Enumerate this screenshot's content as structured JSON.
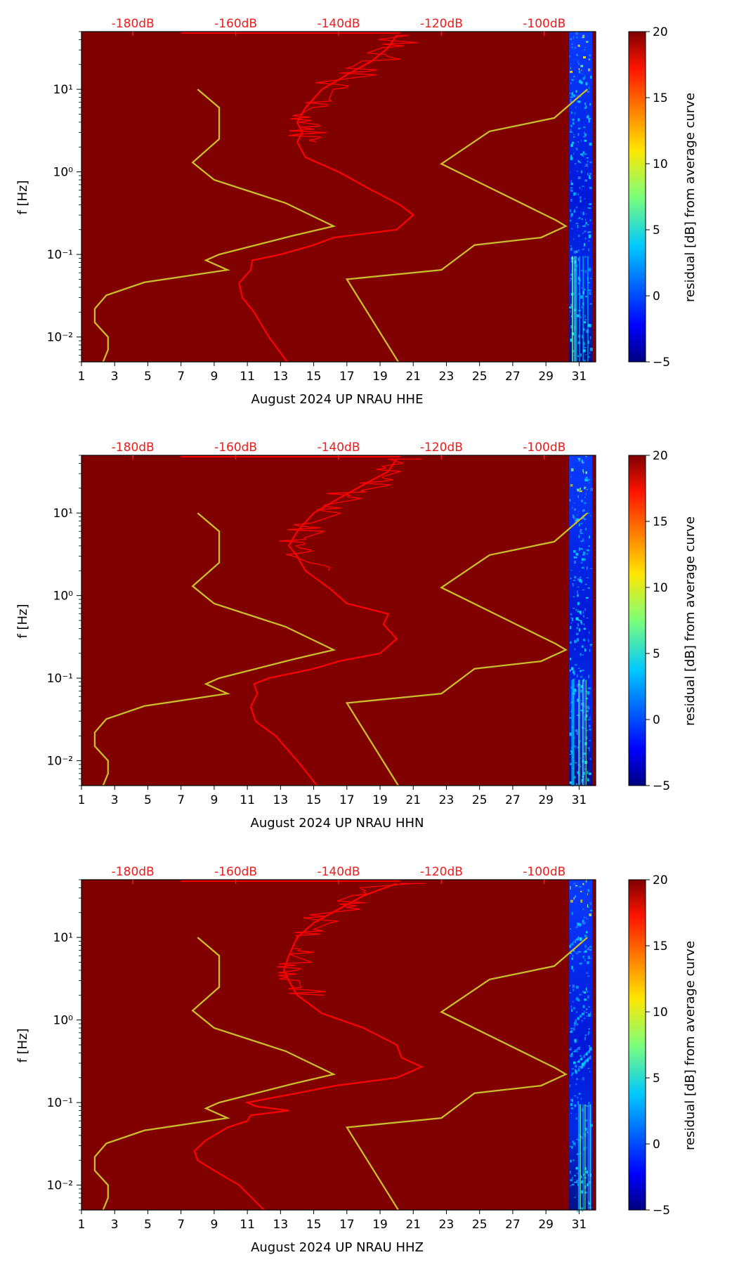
{
  "chart_data": [
    {
      "type": "heatmap",
      "xlabel": "August 2024 UP NRAU  HHE",
      "ylabel": "f [Hz]",
      "x_ticks": [
        "1",
        "3",
        "5",
        "7",
        "9",
        "11",
        "13",
        "15",
        "17",
        "19",
        "21",
        "23",
        "25",
        "27",
        "29",
        "31"
      ],
      "xlim": [
        1,
        32
      ],
      "y_ticks": [
        "10⁻²",
        "10⁻¹",
        "10⁰",
        "10¹"
      ],
      "ylim": [
        0.005,
        50
      ],
      "top_ticks": [
        "-180dB",
        "-160dB",
        "-140dB",
        "-120dB",
        "-100dB"
      ],
      "top_range_db": [
        -190,
        -90
      ],
      "colorbar": {
        "label": "residual [dB] from average curve",
        "ticks": [
          "20",
          "15",
          "10",
          "5",
          "0",
          "−5"
        ],
        "range": [
          -5,
          20
        ]
      },
      "noise_models": {
        "low": [
          [
            8.0,
            10
          ],
          [
            9.3,
            6
          ],
          [
            9.3,
            2.5
          ],
          [
            7.7,
            1.3
          ],
          [
            9.0,
            0.8
          ],
          [
            13.3,
            0.42
          ],
          [
            16.2,
            0.22
          ],
          [
            13.8,
            0.17
          ],
          [
            9.3,
            0.1
          ],
          [
            8.5,
            0.085
          ],
          [
            9.8,
            0.065
          ],
          [
            4.8,
            0.046
          ],
          [
            2.5,
            0.032
          ],
          [
            1.8,
            0.022
          ],
          [
            1.8,
            0.015
          ],
          [
            2.6,
            0.01
          ],
          [
            2.6,
            0.007
          ],
          [
            2.3,
            0.005
          ]
        ],
        "high": [
          [
            31.5,
            10
          ],
          [
            29.5,
            4.5
          ],
          [
            25.6,
            3.1
          ],
          [
            22.7,
            1.25
          ],
          [
            29.6,
            0.26
          ],
          [
            30.2,
            0.22
          ],
          [
            28.7,
            0.16
          ],
          [
            24.7,
            0.13
          ],
          [
            22.7,
            0.065
          ],
          [
            17.0,
            0.05
          ],
          [
            20.1,
            0.005
          ]
        ]
      },
      "mean_psd": [
        [
          13.4,
          0.005
        ],
        [
          12.3,
          0.01
        ],
        [
          11.4,
          0.02
        ],
        [
          10.7,
          0.03
        ],
        [
          10.5,
          0.045
        ],
        [
          11.2,
          0.065
        ],
        [
          11.3,
          0.085
        ],
        [
          13.0,
          0.1
        ],
        [
          15.0,
          0.13
        ],
        [
          16.2,
          0.16
        ],
        [
          20.0,
          0.2
        ],
        [
          21.0,
          0.3
        ],
        [
          20.2,
          0.4
        ],
        [
          18.5,
          0.6
        ],
        [
          16.5,
          1.0
        ],
        [
          14.5,
          1.5
        ],
        [
          14.0,
          2.3
        ],
        [
          14.3,
          3.0
        ],
        [
          14.0,
          4.0
        ],
        [
          14.5,
          6.0
        ],
        [
          15.5,
          10
        ],
        [
          17.0,
          15
        ],
        [
          18.5,
          22
        ],
        [
          19.5,
          32
        ],
        [
          20.0,
          45
        ]
      ],
      "recent_days": [
        30.4,
        31.8
      ]
    },
    {
      "type": "heatmap",
      "xlabel": "August 2024 UP NRAU  HHN",
      "ylabel": "f [Hz]",
      "x_ticks": [
        "1",
        "3",
        "5",
        "7",
        "9",
        "11",
        "13",
        "15",
        "17",
        "19",
        "21",
        "23",
        "25",
        "27",
        "29",
        "31"
      ],
      "xlim": [
        1,
        32
      ],
      "y_ticks": [
        "10⁻²",
        "10⁻¹",
        "10⁰",
        "10¹"
      ],
      "ylim": [
        0.005,
        50
      ],
      "top_ticks": [
        "-180dB",
        "-160dB",
        "-140dB",
        "-120dB",
        "-100dB"
      ],
      "top_range_db": [
        -190,
        -90
      ],
      "colorbar": {
        "label": "residual [dB] from average curve",
        "ticks": [
          "20",
          "15",
          "10",
          "5",
          "0",
          "−5"
        ],
        "range": [
          -5,
          20
        ]
      },
      "noise_models": {
        "low": [
          [
            8.0,
            10
          ],
          [
            9.3,
            6
          ],
          [
            9.3,
            2.5
          ],
          [
            7.7,
            1.3
          ],
          [
            9.0,
            0.8
          ],
          [
            13.3,
            0.42
          ],
          [
            16.2,
            0.22
          ],
          [
            13.8,
            0.17
          ],
          [
            9.3,
            0.1
          ],
          [
            8.5,
            0.085
          ],
          [
            9.8,
            0.065
          ],
          [
            4.8,
            0.046
          ],
          [
            2.5,
            0.032
          ],
          [
            1.8,
            0.022
          ],
          [
            1.8,
            0.015
          ],
          [
            2.6,
            0.01
          ],
          [
            2.6,
            0.007
          ],
          [
            2.3,
            0.005
          ]
        ],
        "high": [
          [
            31.5,
            10
          ],
          [
            29.5,
            4.5
          ],
          [
            25.6,
            3.1
          ],
          [
            22.7,
            1.25
          ],
          [
            29.6,
            0.26
          ],
          [
            30.2,
            0.22
          ],
          [
            28.7,
            0.16
          ],
          [
            24.7,
            0.13
          ],
          [
            22.7,
            0.065
          ],
          [
            17.0,
            0.05
          ],
          [
            20.1,
            0.005
          ]
        ]
      },
      "mean_psd": [
        [
          15.2,
          0.005
        ],
        [
          14.0,
          0.01
        ],
        [
          12.7,
          0.02
        ],
        [
          11.5,
          0.03
        ],
        [
          11.2,
          0.045
        ],
        [
          11.6,
          0.065
        ],
        [
          11.4,
          0.085
        ],
        [
          12.3,
          0.1
        ],
        [
          15.0,
          0.13
        ],
        [
          16.5,
          0.16
        ],
        [
          19.0,
          0.2
        ],
        [
          20.0,
          0.3
        ],
        [
          19.2,
          0.45
        ],
        [
          19.5,
          0.6
        ],
        [
          17.0,
          0.8
        ],
        [
          16.0,
          1.2
        ],
        [
          14.5,
          2.0
        ],
        [
          14.0,
          3.0
        ],
        [
          13.5,
          4.0
        ],
        [
          14.0,
          6.0
        ],
        [
          15.0,
          10
        ],
        [
          16.5,
          15
        ],
        [
          18.0,
          22
        ],
        [
          19.5,
          32
        ],
        [
          20.0,
          45
        ]
      ],
      "recent_days": [
        30.4,
        31.8
      ]
    },
    {
      "type": "heatmap",
      "xlabel": "August 2024 UP NRAU  HHZ",
      "ylabel": "f [Hz]",
      "x_ticks": [
        "1",
        "3",
        "5",
        "7",
        "9",
        "11",
        "13",
        "15",
        "17",
        "19",
        "21",
        "23",
        "25",
        "27",
        "29",
        "31"
      ],
      "xlim": [
        1,
        32
      ],
      "y_ticks": [
        "10⁻²",
        "10⁻¹",
        "10⁰",
        "10¹"
      ],
      "ylim": [
        0.005,
        50
      ],
      "top_ticks": [
        "-180dB",
        "-160dB",
        "-140dB",
        "-120dB",
        "-100dB"
      ],
      "top_range_db": [
        -190,
        -90
      ],
      "colorbar": {
        "label": "residual [dB] from average curve",
        "ticks": [
          "20",
          "15",
          "10",
          "5",
          "0",
          "−5"
        ],
        "range": [
          -5,
          20
        ]
      },
      "noise_models": {
        "low": [
          [
            8.0,
            10
          ],
          [
            9.3,
            6
          ],
          [
            9.3,
            2.5
          ],
          [
            7.7,
            1.3
          ],
          [
            9.0,
            0.8
          ],
          [
            13.3,
            0.42
          ],
          [
            16.2,
            0.22
          ],
          [
            13.8,
            0.17
          ],
          [
            9.3,
            0.1
          ],
          [
            8.5,
            0.085
          ],
          [
            9.8,
            0.065
          ],
          [
            4.8,
            0.046
          ],
          [
            2.5,
            0.032
          ],
          [
            1.8,
            0.022
          ],
          [
            1.8,
            0.015
          ],
          [
            2.6,
            0.01
          ],
          [
            2.6,
            0.007
          ],
          [
            2.3,
            0.005
          ]
        ],
        "high": [
          [
            31.5,
            10
          ],
          [
            29.5,
            4.5
          ],
          [
            25.6,
            3.1
          ],
          [
            22.7,
            1.25
          ],
          [
            29.6,
            0.26
          ],
          [
            30.2,
            0.22
          ],
          [
            28.7,
            0.16
          ],
          [
            24.7,
            0.13
          ],
          [
            22.7,
            0.065
          ],
          [
            17.0,
            0.05
          ],
          [
            20.1,
            0.005
          ]
        ]
      },
      "mean_psd": [
        [
          12.0,
          0.005
        ],
        [
          10.5,
          0.01
        ],
        [
          9.0,
          0.015
        ],
        [
          8.0,
          0.02
        ],
        [
          7.8,
          0.026
        ],
        [
          8.5,
          0.035
        ],
        [
          9.8,
          0.05
        ],
        [
          11.0,
          0.06
        ],
        [
          11.2,
          0.07
        ],
        [
          13.5,
          0.08
        ],
        [
          11.5,
          0.09
        ],
        [
          11.0,
          0.1
        ],
        [
          14.0,
          0.13
        ],
        [
          16.3,
          0.16
        ],
        [
          20.0,
          0.2
        ],
        [
          21.5,
          0.27
        ],
        [
          20.3,
          0.35
        ],
        [
          20.0,
          0.5
        ],
        [
          18.0,
          0.8
        ],
        [
          15.5,
          1.2
        ],
        [
          14.0,
          2.0
        ],
        [
          13.5,
          3.0
        ],
        [
          13.2,
          4.0
        ],
        [
          13.5,
          6.0
        ],
        [
          14.0,
          10
        ],
        [
          15.0,
          15
        ],
        [
          16.5,
          22
        ],
        [
          18.0,
          32
        ],
        [
          20.0,
          45
        ]
      ],
      "recent_days": [
        30.4,
        31.8
      ]
    }
  ],
  "colors": {
    "background": "#800000",
    "noise_model": "#c9bd2a",
    "mean_curve": "#ff0000",
    "top_axis": "#ee1c1c"
  }
}
